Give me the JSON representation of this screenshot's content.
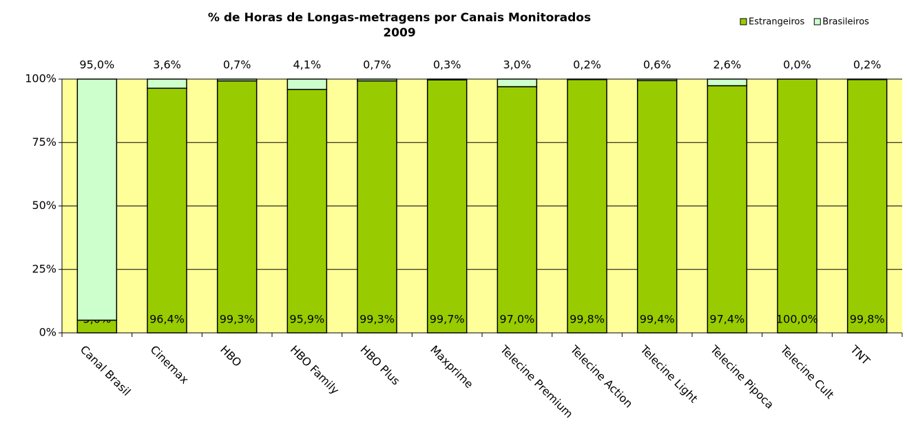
{
  "chart_data": {
    "type": "stacked_bar",
    "title": "% de Horas de Longas-metragens por Canais Monitorados",
    "subtitle": "2009",
    "categories": [
      "Canal Brasil",
      "Cinemax",
      "HBO",
      "HBO Family",
      "HBO Plus",
      "Maxprime",
      "Telecine Premium",
      "Telecine Action",
      "Telecine Light",
      "Telecine Pipoca",
      "Telecine Cult",
      "TNT"
    ],
    "series": [
      {
        "name": "Estrangeiros",
        "color": "#99cc00",
        "values": [
          5.0,
          96.4,
          99.3,
          95.9,
          99.3,
          99.7,
          97.0,
          99.8,
          99.4,
          97.4,
          100.0,
          99.8
        ],
        "value_labels": [
          "5,0%",
          "96,4%",
          "99,3%",
          "95,9%",
          "99,3%",
          "99,7%",
          "97,0%",
          "99,8%",
          "99,4%",
          "97,4%",
          "100,0%",
          "99,8%"
        ]
      },
      {
        "name": "Brasileiros",
        "color": "#ccffcc",
        "values": [
          95.0,
          3.6,
          0.7,
          4.1,
          0.7,
          0.3,
          3.0,
          0.2,
          0.6,
          2.6,
          0.0,
          0.2
        ],
        "value_labels": [
          "95,0%",
          "3,6%",
          "0,7%",
          "4,1%",
          "0,7%",
          "0,3%",
          "3,0%",
          "0,2%",
          "0,6%",
          "2,6%",
          "0,0%",
          "0,2%"
        ]
      }
    ],
    "ylim": [
      0,
      100
    ],
    "yticks": [
      {
        "value": 0,
        "label": "0%"
      },
      {
        "value": 25,
        "label": "25%"
      },
      {
        "value": 50,
        "label": "50%"
      },
      {
        "value": 75,
        "label": "75%"
      },
      {
        "value": 100,
        "label": "100%"
      }
    ],
    "grid": true,
    "legend": "top-right",
    "background": "#ffff99"
  }
}
